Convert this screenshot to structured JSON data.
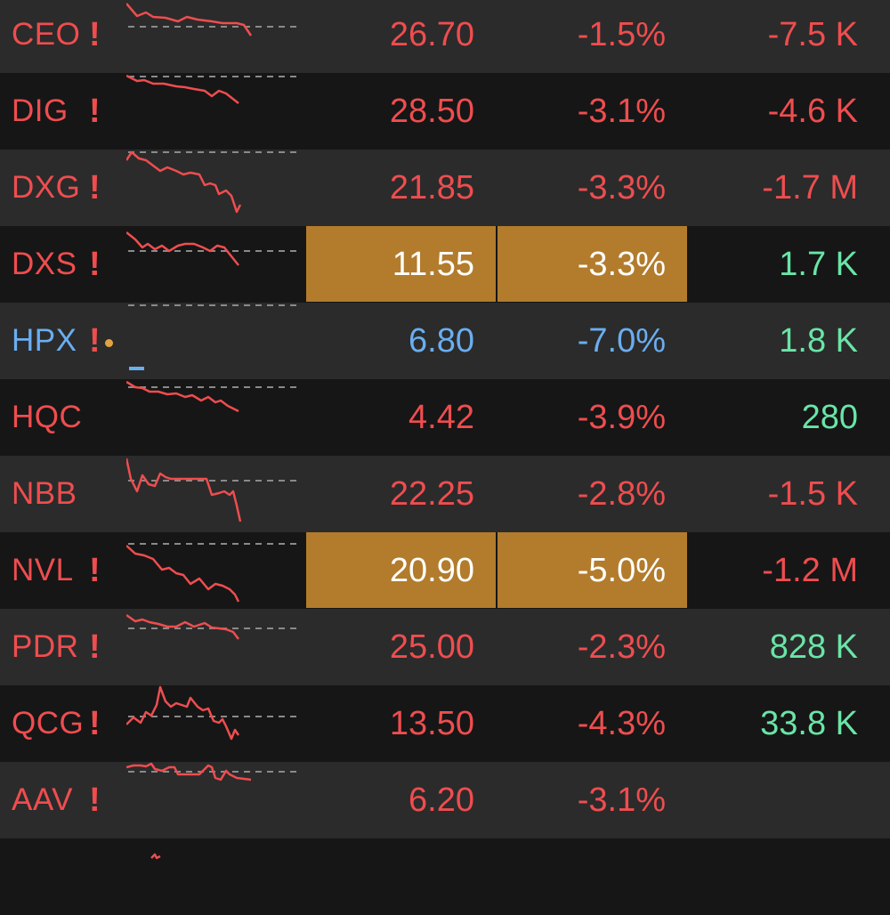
{
  "colors": {
    "down": "#ef4d4f",
    "floor": "#6aaef0",
    "up": "#69e5a7",
    "highlight": "#b27c2c",
    "row_even": "#2b2b2b",
    "row_odd": "#161616"
  },
  "rows": [
    {
      "symbol": "CEO",
      "warning": "!",
      "status": "down",
      "price": "26.70",
      "change": "-1.5%",
      "volume": "-7.5 K",
      "volume_status": "down",
      "highlight": false,
      "spark_icon": "sparkline-chart-icon"
    },
    {
      "symbol": "DIG",
      "warning": "!",
      "status": "down",
      "price": "28.50",
      "change": "-3.1%",
      "volume": "-4.6 K",
      "volume_status": "down",
      "highlight": false,
      "spark_icon": "sparkline-chart-icon"
    },
    {
      "symbol": "DXG",
      "warning": "!",
      "status": "down",
      "price": "21.85",
      "change": "-3.3%",
      "volume": "-1.7 M",
      "volume_status": "down",
      "highlight": false,
      "spark_icon": "sparkline-chart-icon"
    },
    {
      "symbol": "DXS",
      "warning": "!",
      "status": "down",
      "price": "11.55",
      "change": "-3.3%",
      "volume": "1.7 K",
      "volume_status": "up",
      "highlight": true,
      "spark_icon": "sparkline-chart-icon"
    },
    {
      "symbol": "HPX",
      "warning": "!",
      "status": "floor",
      "price": "6.80",
      "change": "-7.0%",
      "volume": "1.8 K",
      "volume_status": "up",
      "highlight": false,
      "dot": true,
      "spark_icon": "sparkline-chart-icon"
    },
    {
      "symbol": "HQC",
      "warning": "",
      "status": "down",
      "price": "4.42",
      "change": "-3.9%",
      "volume": "280",
      "volume_status": "up",
      "highlight": false,
      "spark_icon": "sparkline-chart-icon"
    },
    {
      "symbol": "NBB",
      "warning": "",
      "status": "down",
      "price": "22.25",
      "change": "-2.8%",
      "volume": "-1.5 K",
      "volume_status": "down",
      "highlight": false,
      "spark_icon": "sparkline-chart-icon"
    },
    {
      "symbol": "NVL",
      "warning": "!",
      "status": "down",
      "price": "20.90",
      "change": "-5.0%",
      "volume": "-1.2 M",
      "volume_status": "down",
      "highlight": true,
      "spark_icon": "sparkline-chart-icon"
    },
    {
      "symbol": "PDR",
      "warning": "!",
      "status": "down",
      "price": "25.00",
      "change": "-2.3%",
      "volume": "828 K",
      "volume_status": "up",
      "highlight": false,
      "spark_icon": "sparkline-chart-icon"
    },
    {
      "symbol": "QCG",
      "warning": "!",
      "status": "down",
      "price": "13.50",
      "change": "-4.3%",
      "volume": "33.8 K",
      "volume_status": "up",
      "highlight": false,
      "spark_icon": "sparkline-chart-icon"
    },
    {
      "symbol": "AAV",
      "warning": "!",
      "status": "down",
      "price": "6.20",
      "change": "-3.1%",
      "volume": "",
      "volume_status": "down",
      "highlight": false,
      "spark_icon": "sparkline-chart-icon"
    },
    {
      "symbol": "",
      "warning": "",
      "status": "down",
      "price": "",
      "change": "",
      "volume": "",
      "volume_status": "down",
      "highlight": false,
      "spark_icon": "sparkline-chart-icon"
    }
  ]
}
